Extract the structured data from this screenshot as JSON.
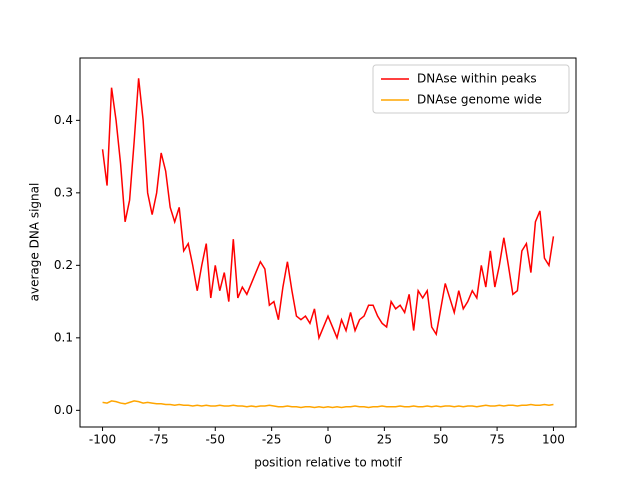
{
  "chart_data": {
    "type": "line",
    "x_label": "position relative to motif",
    "y_label": "average DNA signal",
    "x": [
      -100,
      -98,
      -96,
      -94,
      -92,
      -90,
      -88,
      -86,
      -84,
      -82,
      -80,
      -78,
      -76,
      -74,
      -72,
      -70,
      -68,
      -66,
      -64,
      -62,
      -60,
      -58,
      -56,
      -54,
      -52,
      -50,
      -48,
      -46,
      -44,
      -42,
      -40,
      -38,
      -36,
      -34,
      -32,
      -30,
      -28,
      -26,
      -24,
      -22,
      -20,
      -18,
      -16,
      -14,
      -12,
      -10,
      -8,
      -6,
      -4,
      -2,
      0,
      2,
      4,
      6,
      8,
      10,
      12,
      14,
      16,
      18,
      20,
      22,
      24,
      26,
      28,
      30,
      32,
      34,
      36,
      38,
      40,
      42,
      44,
      46,
      48,
      50,
      52,
      54,
      56,
      58,
      60,
      62,
      64,
      66,
      68,
      70,
      72,
      74,
      76,
      78,
      80,
      82,
      84,
      86,
      88,
      90,
      92,
      94,
      96,
      98,
      100
    ],
    "series": [
      {
        "name": "DNAse within peaks",
        "color": "#ff0000",
        "values": [
          0.36,
          0.31,
          0.445,
          0.4,
          0.34,
          0.26,
          0.29,
          0.37,
          0.458,
          0.4,
          0.3,
          0.27,
          0.3,
          0.355,
          0.33,
          0.28,
          0.26,
          0.28,
          0.22,
          0.23,
          0.2,
          0.165,
          0.2,
          0.23,
          0.155,
          0.2,
          0.165,
          0.19,
          0.15,
          0.236,
          0.155,
          0.17,
          0.16,
          0.175,
          0.19,
          0.205,
          0.195,
          0.145,
          0.15,
          0.125,
          0.17,
          0.205,
          0.165,
          0.13,
          0.125,
          0.13,
          0.12,
          0.14,
          0.1,
          0.115,
          0.13,
          0.115,
          0.1,
          0.125,
          0.11,
          0.135,
          0.11,
          0.125,
          0.13,
          0.145,
          0.145,
          0.13,
          0.12,
          0.115,
          0.15,
          0.14,
          0.145,
          0.135,
          0.16,
          0.11,
          0.165,
          0.155,
          0.165,
          0.115,
          0.105,
          0.14,
          0.175,
          0.155,
          0.135,
          0.165,
          0.14,
          0.15,
          0.165,
          0.155,
          0.2,
          0.17,
          0.22,
          0.17,
          0.2,
          0.238,
          0.2,
          0.16,
          0.165,
          0.22,
          0.23,
          0.19,
          0.26,
          0.275,
          0.21,
          0.2,
          0.24
        ]
      },
      {
        "name": "DNAse genome wide",
        "color": "#ffa500",
        "values": [
          0.011,
          0.01,
          0.013,
          0.012,
          0.01,
          0.009,
          0.011,
          0.013,
          0.012,
          0.01,
          0.011,
          0.01,
          0.009,
          0.009,
          0.008,
          0.008,
          0.007,
          0.008,
          0.007,
          0.007,
          0.006,
          0.007,
          0.006,
          0.007,
          0.006,
          0.006,
          0.007,
          0.006,
          0.006,
          0.007,
          0.006,
          0.006,
          0.005,
          0.006,
          0.005,
          0.006,
          0.006,
          0.007,
          0.006,
          0.005,
          0.005,
          0.006,
          0.005,
          0.005,
          0.004,
          0.005,
          0.005,
          0.004,
          0.005,
          0.004,
          0.005,
          0.004,
          0.005,
          0.004,
          0.005,
          0.005,
          0.006,
          0.005,
          0.005,
          0.004,
          0.005,
          0.005,
          0.006,
          0.005,
          0.005,
          0.005,
          0.006,
          0.005,
          0.005,
          0.006,
          0.005,
          0.005,
          0.006,
          0.005,
          0.006,
          0.005,
          0.006,
          0.006,
          0.005,
          0.006,
          0.005,
          0.006,
          0.006,
          0.005,
          0.006,
          0.007,
          0.006,
          0.006,
          0.007,
          0.006,
          0.007,
          0.007,
          0.006,
          0.007,
          0.007,
          0.008,
          0.007,
          0.007,
          0.008,
          0.007,
          0.008
        ]
      }
    ],
    "xlim": [
      -110,
      110
    ],
    "ylim": [
      -0.023,
      0.486
    ],
    "xticks": [
      -100,
      -75,
      -50,
      -25,
      0,
      25,
      50,
      75,
      100
    ],
    "yticks": [
      {
        "value": 0,
        "label": "0.0"
      },
      0.1,
      0.2,
      0.3,
      0.4
    ],
    "legend": "upper right"
  }
}
